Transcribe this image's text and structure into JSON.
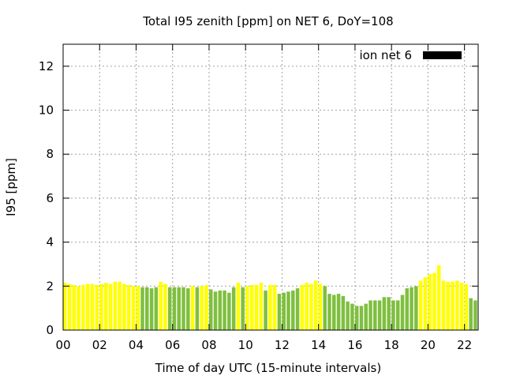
{
  "chart_data": {
    "type": "bar",
    "title": "Total I95 zenith [ppm] on NET 6, DoY=108",
    "xlabel": "Time of day UTC (15-minute intervals)",
    "ylabel": "I95 [ppm]",
    "xlim": [
      0,
      22.75
    ],
    "ylim": [
      0,
      13
    ],
    "grid": true,
    "legend": {
      "label": "ion net 6",
      "placement": "top-right",
      "swatch_color": "#000000"
    },
    "x_ticks": [
      {
        "value": 0,
        "label": "00"
      },
      {
        "value": 2,
        "label": "02"
      },
      {
        "value": 4,
        "label": "04"
      },
      {
        "value": 6,
        "label": "06"
      },
      {
        "value": 8,
        "label": "08"
      },
      {
        "value": 10,
        "label": "10"
      },
      {
        "value": 12,
        "label": "12"
      },
      {
        "value": 14,
        "label": "14"
      },
      {
        "value": 16,
        "label": "16"
      },
      {
        "value": 18,
        "label": "18"
      },
      {
        "value": 20,
        "label": "20"
      },
      {
        "value": 22,
        "label": "22"
      }
    ],
    "y_ticks": [
      {
        "value": 0,
        "label": "0"
      },
      {
        "value": 2,
        "label": "2"
      },
      {
        "value": 4,
        "label": "4"
      },
      {
        "value": 6,
        "label": "6"
      },
      {
        "value": 8,
        "label": "8"
      },
      {
        "value": 10,
        "label": "10"
      },
      {
        "value": 12,
        "label": "12"
      }
    ],
    "interval_hours": 0.25,
    "colors": {
      "Y": "#ffff00",
      "G": "#7fbf3f"
    },
    "values": [
      2.15,
      2.1,
      2.05,
      2.0,
      2.05,
      2.1,
      2.1,
      2.05,
      2.1,
      2.15,
      2.1,
      2.2,
      2.2,
      2.1,
      2.05,
      2.0,
      2.0,
      1.95,
      1.95,
      1.9,
      1.95,
      2.2,
      2.1,
      1.95,
      1.95,
      1.95,
      1.95,
      1.9,
      2.0,
      1.95,
      2.0,
      2.05,
      1.85,
      1.75,
      1.8,
      1.8,
      1.7,
      1.95,
      2.15,
      1.95,
      2.0,
      2.05,
      2.05,
      2.15,
      1.8,
      2.05,
      2.05,
      1.65,
      1.7,
      1.75,
      1.8,
      1.9,
      2.05,
      2.15,
      2.1,
      2.25,
      2.1,
      2.0,
      1.65,
      1.6,
      1.65,
      1.55,
      1.3,
      1.2,
      1.1,
      1.1,
      1.2,
      1.35,
      1.35,
      1.35,
      1.5,
      1.5,
      1.35,
      1.35,
      1.6,
      1.9,
      1.95,
      2.0,
      2.25,
      2.4,
      2.55,
      2.6,
      2.95,
      2.25,
      2.2,
      2.2,
      2.25,
      2.15,
      2.1,
      1.45,
      1.35
    ],
    "bar_colors": [
      "Y",
      "Y",
      "Y",
      "Y",
      "Y",
      "Y",
      "Y",
      "Y",
      "Y",
      "Y",
      "Y",
      "Y",
      "Y",
      "Y",
      "Y",
      "Y",
      "Y",
      "G",
      "G",
      "G",
      "G",
      "Y",
      "Y",
      "G",
      "G",
      "G",
      "G",
      "G",
      "Y",
      "G",
      "Y",
      "Y",
      "G",
      "G",
      "G",
      "G",
      "G",
      "G",
      "Y",
      "G",
      "Y",
      "Y",
      "Y",
      "Y",
      "G",
      "Y",
      "Y",
      "G",
      "G",
      "G",
      "G",
      "G",
      "Y",
      "Y",
      "Y",
      "Y",
      "Y",
      "G",
      "G",
      "G",
      "G",
      "G",
      "G",
      "G",
      "G",
      "G",
      "G",
      "G",
      "G",
      "G",
      "G",
      "G",
      "G",
      "G",
      "G",
      "G",
      "G",
      "G",
      "Y",
      "Y",
      "Y",
      "Y",
      "Y",
      "Y",
      "Y",
      "Y",
      "Y",
      "Y",
      "Y",
      "G",
      "G"
    ]
  }
}
